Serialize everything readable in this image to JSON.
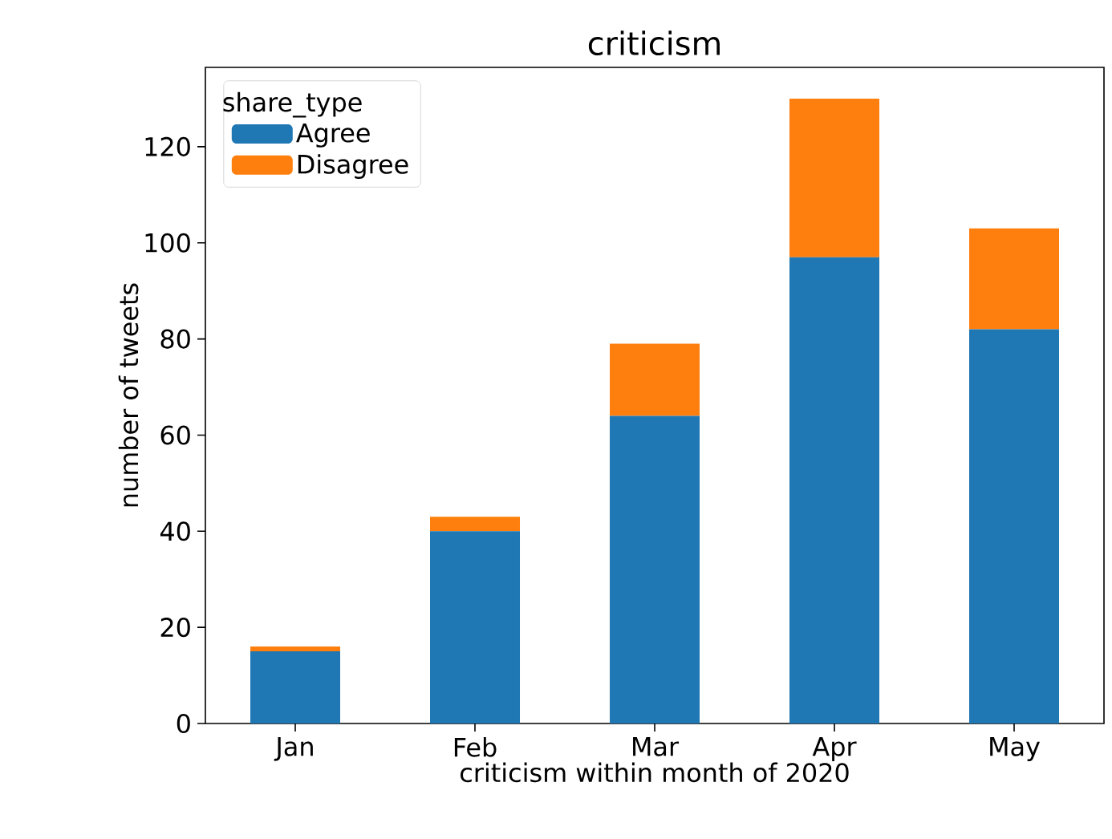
{
  "chart_data": {
    "type": "bar",
    "title": "criticism",
    "xlabel": "criticism within month of 2020",
    "ylabel": "number of tweets",
    "categories": [
      "Jan",
      "Feb",
      "Mar",
      "Apr",
      "May"
    ],
    "series": [
      {
        "name": "Agree",
        "color": "#1f77b4",
        "values": [
          15,
          40,
          64,
          97,
          82
        ]
      },
      {
        "name": "Disagree",
        "color": "#ff7f0e",
        "values": [
          1,
          3,
          15,
          33,
          21
        ]
      }
    ],
    "stacked": true,
    "legend_title": "share_type",
    "legend": "top left",
    "ylim": [
      0,
      136.5
    ],
    "yticks": [
      0,
      20,
      40,
      60,
      80,
      100,
      120
    ]
  }
}
